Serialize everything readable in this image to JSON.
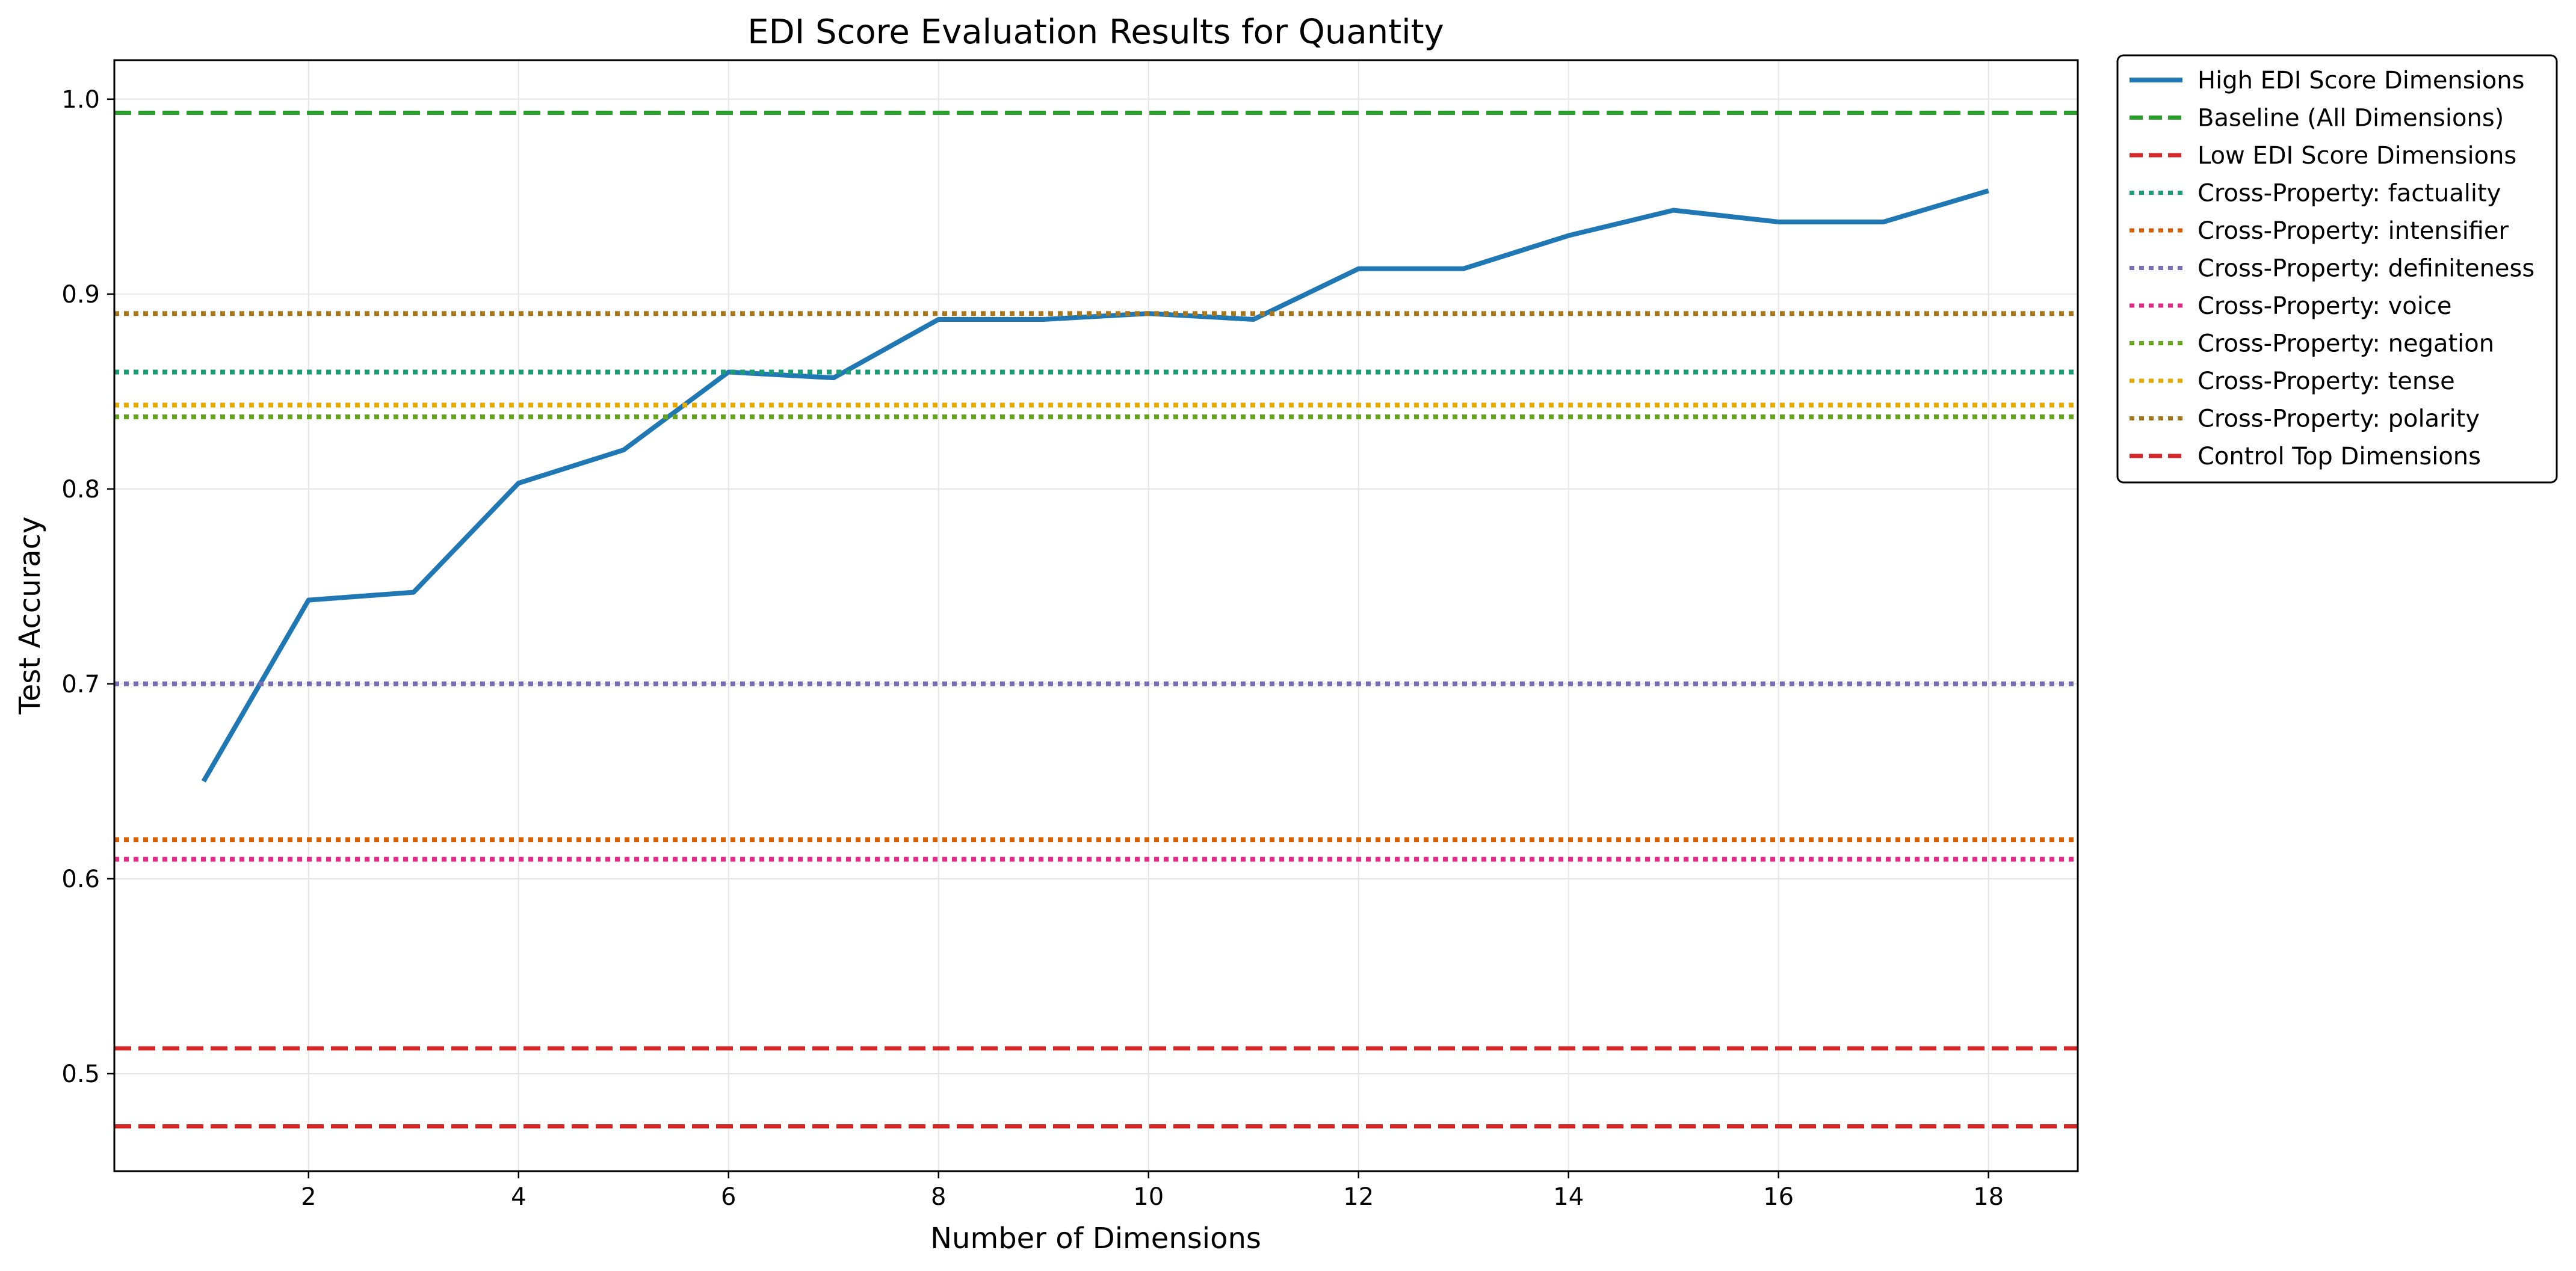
{
  "chart_data": {
    "type": "line",
    "title": "EDI Score Evaluation Results for Quantity",
    "xlabel": "Number of Dimensions",
    "ylabel": "Test Accuracy",
    "xlim": [
      0.15,
      18.85
    ],
    "ylim": [
      0.45,
      1.02
    ],
    "xticks": [
      2,
      4,
      6,
      8,
      10,
      12,
      14,
      16,
      18
    ],
    "yticks": [
      0.5,
      0.6,
      0.7,
      0.8,
      0.9,
      1.0
    ],
    "ytick_labels": [
      "0.5",
      "0.6",
      "0.7",
      "0.8",
      "0.9",
      "1.0"
    ],
    "grid": true,
    "legend_position": "outside upper right",
    "series": [
      {
        "name": "High EDI Score Dimensions",
        "kind": "line",
        "color": "#1f77b4",
        "style": "solid",
        "x": [
          1,
          2,
          3,
          4,
          5,
          6,
          7,
          8,
          9,
          10,
          11,
          12,
          13,
          14,
          15,
          16,
          17,
          18
        ],
        "y": [
          0.65,
          0.743,
          0.747,
          0.803,
          0.82,
          0.86,
          0.857,
          0.887,
          0.887,
          0.89,
          0.887,
          0.913,
          0.913,
          0.93,
          0.943,
          0.937,
          0.937,
          0.953
        ]
      },
      {
        "name": "Baseline (All Dimensions)",
        "kind": "hline",
        "color": "#2ca02c",
        "style": "dashed",
        "y": 0.993
      },
      {
        "name": "Low EDI Score Dimensions",
        "kind": "hline",
        "color": "#d62728",
        "style": "dashed",
        "y": 0.473
      },
      {
        "name": "Cross-Property: factuality",
        "kind": "hline",
        "color": "#1b9e77",
        "style": "dotted",
        "y": 0.86
      },
      {
        "name": "Cross-Property: intensifier",
        "kind": "hline",
        "color": "#d95f02",
        "style": "dotted",
        "y": 0.62
      },
      {
        "name": "Cross-Property: definiteness",
        "kind": "hline",
        "color": "#7570b3",
        "style": "dotted",
        "y": 0.7
      },
      {
        "name": "Cross-Property: voice",
        "kind": "hline",
        "color": "#e7298a",
        "style": "dotted",
        "y": 0.61
      },
      {
        "name": "Cross-Property: negation",
        "kind": "hline",
        "color": "#66a61e",
        "style": "dotted",
        "y": 0.837
      },
      {
        "name": "Cross-Property: tense",
        "kind": "hline",
        "color": "#e6ab02",
        "style": "dotted",
        "y": 0.843
      },
      {
        "name": "Cross-Property: polarity",
        "kind": "hline",
        "color": "#a6761d",
        "style": "dotted",
        "y": 0.89
      },
      {
        "name": "Control Top Dimensions",
        "kind": "hline",
        "color": "#d62728",
        "style": "dashed",
        "y": 0.513
      }
    ]
  }
}
